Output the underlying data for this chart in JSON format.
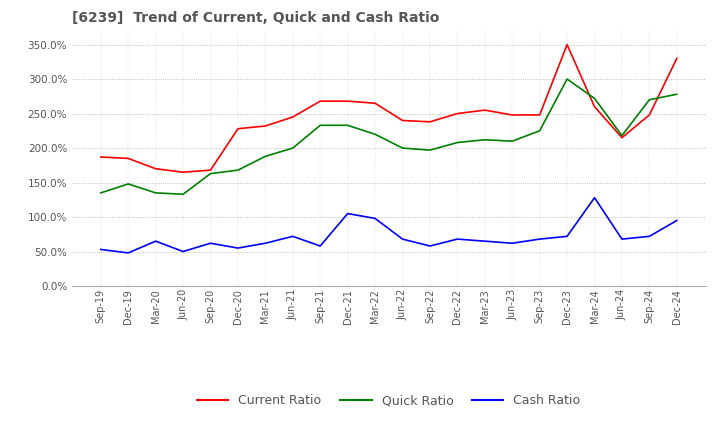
{
  "title": "[6239]  Trend of Current, Quick and Cash Ratio",
  "x_labels": [
    "Sep-19",
    "Dec-19",
    "Mar-20",
    "Jun-20",
    "Sep-20",
    "Dec-20",
    "Mar-21",
    "Jun-21",
    "Sep-21",
    "Dec-21",
    "Mar-22",
    "Jun-22",
    "Sep-22",
    "Dec-22",
    "Mar-23",
    "Jun-23",
    "Sep-23",
    "Dec-23",
    "Mar-24",
    "Jun-24",
    "Sep-24",
    "Dec-24"
  ],
  "current_ratio": [
    187,
    185,
    170,
    165,
    168,
    228,
    232,
    245,
    268,
    268,
    265,
    240,
    238,
    250,
    255,
    248,
    248,
    350,
    260,
    215,
    248,
    330
  ],
  "quick_ratio": [
    135,
    148,
    135,
    133,
    163,
    168,
    188,
    200,
    233,
    233,
    220,
    200,
    197,
    208,
    212,
    210,
    225,
    300,
    272,
    218,
    270,
    278
  ],
  "cash_ratio": [
    53,
    48,
    65,
    50,
    62,
    55,
    62,
    72,
    58,
    105,
    98,
    68,
    58,
    68,
    65,
    62,
    68,
    72,
    128,
    68,
    72,
    95
  ],
  "ylim": [
    0,
    370
  ],
  "yticks": [
    0,
    50,
    100,
    150,
    200,
    250,
    300,
    350
  ],
  "current_color": "#ff0000",
  "quick_color": "#008000",
  "cash_color": "#0000ff",
  "background_color": "#ffffff",
  "grid_color": "#aaaaaa",
  "title_color": "#555555",
  "tick_color": "#555555"
}
